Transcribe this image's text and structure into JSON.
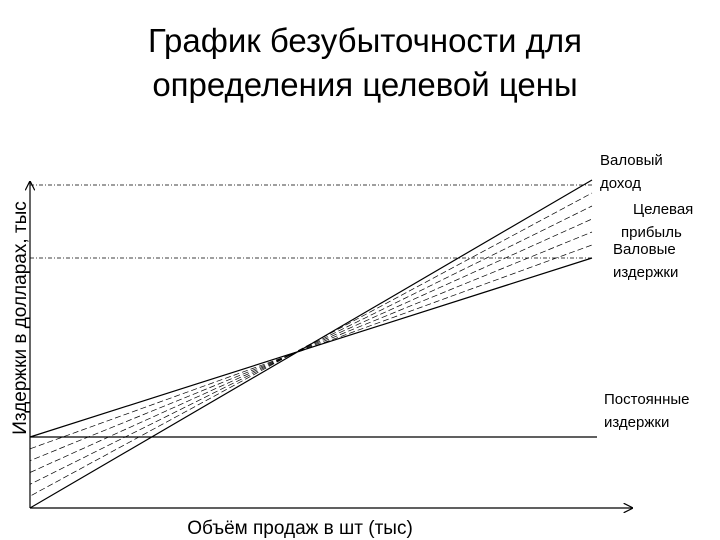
{
  "title": [
    "График безубыточности для",
    "определения целевой цены"
  ],
  "y_axis_label": "Издержки в долларах, тыс",
  "x_axis_label": "Объём продаж в шт (тыс)",
  "labels": {
    "revenue": [
      "Валовый",
      "доход"
    ],
    "profit": [
      "Целевая",
      "прибыль"
    ],
    "total_cost": [
      "Валовые",
      "издержки"
    ],
    "fixed_cost": [
      "Постоянные",
      "издержки"
    ]
  }
}
